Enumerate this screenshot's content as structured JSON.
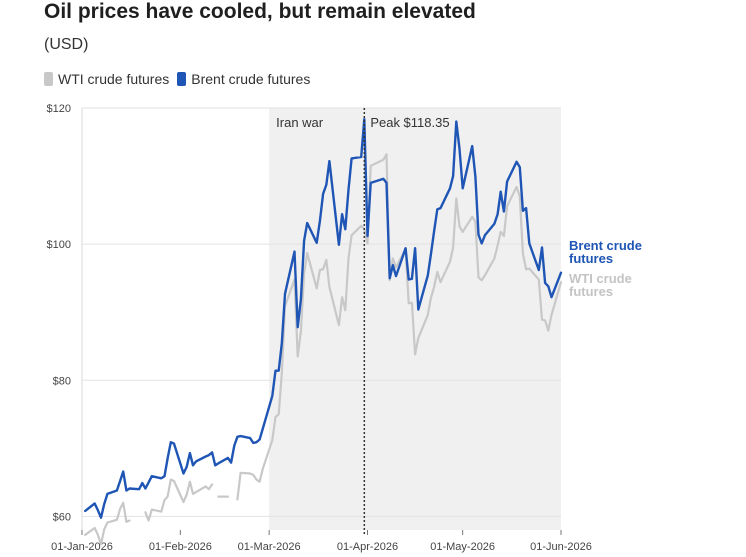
{
  "header": {
    "title": "Oil prices have cooled, but remain elevated",
    "subtitle": "(USD)"
  },
  "legend": [
    {
      "label": "WTI crude futures",
      "color": "#c8c8c8"
    },
    {
      "label": "Brent crude futures",
      "color": "#1f55b5"
    }
  ],
  "chart_data": {
    "type": "line",
    "title": "Oil prices have cooled, but remain elevated",
    "subtitle": "(USD)",
    "xlabel": "",
    "ylabel": "",
    "x_ticks": [
      "01-Jan-2026",
      "01-Feb-2026",
      "01-Mar-2026",
      "01-Apr-2026",
      "01-May-2026",
      "01-Jun-2026"
    ],
    "y_ticks": [
      "$60",
      "$80",
      "$100",
      "$120"
    ],
    "y_tick_values": [
      60,
      80,
      100,
      120
    ],
    "ylim": [
      58,
      120
    ],
    "xlim": [
      "2026-01-01",
      "2026-06-01"
    ],
    "grid": "horizontal",
    "legend_position": "top-left",
    "shaded_region": {
      "start": "2026-03-01",
      "end": "2026-06-01",
      "label": "Iran war",
      "color": "#f0f0f0"
    },
    "annotation": {
      "date": "2026-03-31",
      "value": 118.35,
      "label": "Peak $118.35",
      "style": "dotted-vertical-line"
    },
    "end_labels": [
      {
        "series": "Brent crude futures",
        "lines": [
          "Brent crude",
          "futures"
        ]
      },
      {
        "series": "WTI crude futures",
        "lines": [
          "WTI crude",
          "futures"
        ]
      }
    ],
    "series": [
      {
        "name": "Brent crude futures",
        "color": "#1f55b5",
        "points": [
          [
            "2026-01-02",
            60.8
          ],
          [
            "2026-01-05",
            61.9
          ],
          [
            "2026-01-06",
            60.9
          ],
          [
            "2026-01-07",
            59.8
          ],
          [
            "2026-01-08",
            61.8
          ],
          [
            "2026-01-09",
            63.3
          ],
          [
            "2026-01-12",
            63.8
          ],
          [
            "2026-01-13",
            65.2
          ],
          [
            "2026-01-14",
            66.6
          ],
          [
            "2026-01-15",
            63.8
          ],
          [
            "2026-01-16",
            64.1
          ],
          [
            "2026-01-19",
            64.0
          ],
          [
            "2026-01-20",
            64.9
          ],
          [
            "2026-01-21",
            64.1
          ],
          [
            "2026-01-22",
            65.0
          ],
          [
            "2026-01-23",
            65.9
          ],
          [
            "2026-01-26",
            65.6
          ],
          [
            "2026-01-27",
            65.9
          ],
          [
            "2026-01-28",
            68.5
          ],
          [
            "2026-01-29",
            70.9
          ],
          [
            "2026-01-30",
            70.7
          ],
          [
            "2026-02-02",
            66.3
          ],
          [
            "2026-02-03",
            67.3
          ],
          [
            "2026-02-04",
            69.3
          ],
          [
            "2026-02-05",
            67.5
          ],
          [
            "2026-02-06",
            68.1
          ],
          [
            "2026-02-09",
            68.8
          ],
          [
            "2026-02-10",
            69.0
          ],
          [
            "2026-02-11",
            69.4
          ],
          [
            "2026-02-12",
            67.5
          ],
          [
            "2026-02-13",
            67.8
          ],
          [
            "2026-02-16",
            68.6
          ],
          [
            "2026-02-17",
            67.9
          ],
          [
            "2026-02-18",
            70.4
          ],
          [
            "2026-02-19",
            71.7
          ],
          [
            "2026-02-20",
            71.8
          ],
          [
            "2026-02-23",
            71.5
          ],
          [
            "2026-02-24",
            70.8
          ],
          [
            "2026-02-25",
            70.9
          ],
          [
            "2026-02-26",
            71.3
          ],
          [
            "2026-02-27",
            72.9
          ],
          [
            "2026-03-02",
            77.7
          ],
          [
            "2026-03-03",
            81.4
          ],
          [
            "2026-03-04",
            81.4
          ],
          [
            "2026-03-05",
            85.4
          ],
          [
            "2026-03-06",
            92.7
          ],
          [
            "2026-03-09",
            98.9
          ],
          [
            "2026-03-10",
            87.8
          ],
          [
            "2026-03-11",
            91.9
          ],
          [
            "2026-03-12",
            100.5
          ],
          [
            "2026-03-13",
            103.1
          ],
          [
            "2026-03-16",
            100.2
          ],
          [
            "2026-03-17",
            103.4
          ],
          [
            "2026-03-18",
            107.4
          ],
          [
            "2026-03-19",
            108.7
          ],
          [
            "2026-03-20",
            112.2
          ],
          [
            "2026-03-23",
            99.9
          ],
          [
            "2026-03-24",
            104.4
          ],
          [
            "2026-03-25",
            102.2
          ],
          [
            "2026-03-26",
            108.0
          ],
          [
            "2026-03-27",
            112.6
          ],
          [
            "2026-03-30",
            112.8
          ],
          [
            "2026-03-31",
            118.35
          ],
          [
            "2026-04-01",
            101.2
          ],
          [
            "2026-04-02",
            109.0
          ],
          [
            "2026-04-06",
            109.6
          ],
          [
            "2026-04-07",
            109.0
          ],
          [
            "2026-04-08",
            95.0
          ],
          [
            "2026-04-09",
            96.9
          ],
          [
            "2026-04-10",
            95.3
          ],
          [
            "2026-04-13",
            99.4
          ],
          [
            "2026-04-14",
            94.8
          ],
          [
            "2026-04-15",
            94.9
          ],
          [
            "2026-04-16",
            99.4
          ],
          [
            "2026-04-17",
            90.4
          ],
          [
            "2026-04-20",
            95.4
          ],
          [
            "2026-04-21",
            98.5
          ],
          [
            "2026-04-22",
            101.9
          ],
          [
            "2026-04-23",
            105.1
          ],
          [
            "2026-04-24",
            105.3
          ],
          [
            "2026-04-27",
            108.2
          ],
          [
            "2026-04-28",
            110.0
          ],
          [
            "2026-04-29",
            118.0
          ],
          [
            "2026-04-30",
            114.0
          ],
          [
            "2026-05-01",
            108.2
          ],
          [
            "2026-05-04",
            114.4
          ],
          [
            "2026-05-05",
            109.9
          ],
          [
            "2026-05-06",
            101.4
          ],
          [
            "2026-05-07",
            100.1
          ],
          [
            "2026-05-08",
            101.3
          ],
          [
            "2026-05-11",
            103.0
          ],
          [
            "2026-05-12",
            104.4
          ],
          [
            "2026-05-13",
            107.7
          ],
          [
            "2026-05-14",
            104.8
          ],
          [
            "2026-05-15",
            109.2
          ],
          [
            "2026-05-18",
            112.1
          ],
          [
            "2026-05-19",
            111.3
          ],
          [
            "2026-05-20",
            104.9
          ],
          [
            "2026-05-21",
            105.3
          ],
          [
            "2026-05-22",
            100.1
          ],
          [
            "2026-05-25",
            96.2
          ],
          [
            "2026-05-26",
            99.5
          ],
          [
            "2026-05-27",
            94.3
          ],
          [
            "2026-05-28",
            93.8
          ],
          [
            "2026-05-29",
            92.2
          ],
          [
            "2026-06-01",
            95.8
          ]
        ]
      },
      {
        "name": "WTI crude futures",
        "color": "#c8c8c8",
        "points": [
          [
            "2026-01-02",
            57.3
          ],
          [
            "2026-01-05",
            58.3
          ],
          [
            "2026-01-06",
            57.3
          ],
          [
            "2026-01-07",
            55.9
          ],
          [
            "2026-01-08",
            58.1
          ],
          [
            "2026-01-09",
            59.1
          ],
          [
            "2026-01-12",
            59.5
          ],
          [
            "2026-01-13",
            61.1
          ],
          [
            "2026-01-14",
            62.0
          ],
          [
            "2026-01-15",
            59.2
          ],
          [
            "2026-01-16",
            59.4
          ],
          null,
          [
            "2026-01-21",
            60.6
          ],
          [
            "2026-01-22",
            59.4
          ],
          [
            "2026-01-23",
            61.0
          ],
          [
            "2026-01-26",
            60.7
          ],
          [
            "2026-01-27",
            62.4
          ],
          [
            "2026-01-28",
            62.9
          ],
          [
            "2026-01-29",
            65.4
          ],
          [
            "2026-01-30",
            65.2
          ],
          [
            "2026-02-02",
            62.1
          ],
          [
            "2026-02-03",
            63.2
          ],
          [
            "2026-02-04",
            65.1
          ],
          [
            "2026-02-05",
            63.3
          ],
          [
            "2026-02-06",
            63.6
          ],
          [
            "2026-02-09",
            64.4
          ],
          [
            "2026-02-10",
            64.0
          ],
          [
            "2026-02-11",
            64.7
          ],
          null,
          [
            "2026-02-13",
            62.9
          ],
          [
            "2026-02-16",
            62.9
          ],
          null,
          [
            "2026-02-19",
            62.5
          ],
          [
            "2026-02-20",
            66.4
          ],
          [
            "2026-02-23",
            66.3
          ],
          [
            "2026-02-24",
            66.1
          ],
          [
            "2026-02-25",
            65.4
          ],
          [
            "2026-02-26",
            65.1
          ],
          [
            "2026-02-27",
            67.0
          ],
          [
            "2026-03-02",
            71.2
          ],
          [
            "2026-03-03",
            74.6
          ],
          [
            "2026-03-04",
            75.0
          ],
          [
            "2026-03-05",
            81.0
          ],
          [
            "2026-03-06",
            90.9
          ],
          [
            "2026-03-09",
            94.8
          ],
          [
            "2026-03-10",
            83.5
          ],
          [
            "2026-03-11",
            87.2
          ],
          [
            "2026-03-12",
            95.7
          ],
          [
            "2026-03-13",
            98.7
          ],
          [
            "2026-03-16",
            93.5
          ],
          [
            "2026-03-17",
            96.2
          ],
          [
            "2026-03-18",
            96.3
          ],
          [
            "2026-03-19",
            97.7
          ],
          [
            "2026-03-20",
            93.7
          ],
          [
            "2026-03-23",
            88.1
          ],
          [
            "2026-03-24",
            92.2
          ],
          [
            "2026-03-25",
            90.3
          ],
          [
            "2026-03-26",
            97.9
          ],
          [
            "2026-03-27",
            101.3
          ],
          [
            "2026-03-30",
            102.7
          ],
          [
            "2026-03-31",
            102.2
          ],
          [
            "2026-04-01",
            100.1
          ],
          [
            "2026-04-02",
            111.5
          ],
          [
            "2026-04-06",
            112.4
          ],
          [
            "2026-04-07",
            113.2
          ],
          [
            "2026-04-08",
            94.7
          ],
          [
            "2026-04-09",
            97.9
          ],
          [
            "2026-04-10",
            96.6
          ],
          [
            "2026-04-13",
            99.3
          ],
          [
            "2026-04-14",
            91.3
          ],
          [
            "2026-04-15",
            91.4
          ],
          [
            "2026-04-16",
            83.8
          ],
          [
            "2026-04-17",
            86.2
          ],
          [
            "2026-04-20",
            89.6
          ],
          [
            "2026-04-21",
            92.1
          ],
          [
            "2026-04-22",
            93.7
          ],
          [
            "2026-04-23",
            95.9
          ],
          [
            "2026-04-24",
            94.4
          ],
          [
            "2026-04-27",
            97.4
          ],
          [
            "2026-04-28",
            99.5
          ],
          [
            "2026-04-29",
            106.7
          ],
          [
            "2026-04-30",
            102.6
          ],
          [
            "2026-05-01",
            101.8
          ],
          [
            "2026-05-04",
            104.0
          ],
          [
            "2026-05-05",
            103.3
          ],
          [
            "2026-05-06",
            95.1
          ],
          [
            "2026-05-07",
            94.7
          ],
          [
            "2026-05-08",
            95.4
          ],
          [
            "2026-05-11",
            97.9
          ],
          [
            "2026-05-12",
            99.8
          ],
          [
            "2026-05-13",
            101.8
          ],
          [
            "2026-05-14",
            101.2
          ],
          [
            "2026-05-15",
            105.6
          ],
          [
            "2026-05-18",
            108.4
          ],
          [
            "2026-05-19",
            107.0
          ],
          [
            "2026-05-20",
            98.6
          ],
          [
            "2026-05-21",
            96.3
          ],
          [
            "2026-05-22",
            96.4
          ],
          [
            "2026-05-25",
            94.8
          ],
          [
            "2026-05-26",
            88.9
          ],
          [
            "2026-05-27",
            88.8
          ],
          [
            "2026-05-28",
            87.3
          ],
          [
            "2026-05-29",
            89.6
          ],
          [
            "2026-06-01",
            94.4
          ]
        ]
      }
    ]
  }
}
